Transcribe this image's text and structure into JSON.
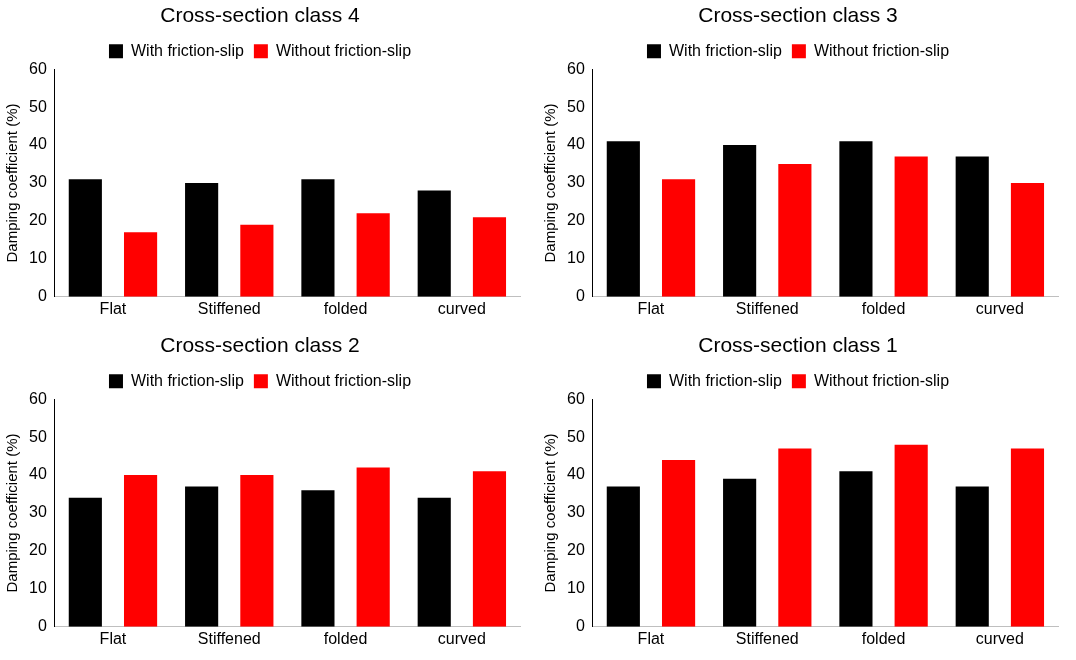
{
  "chart_data": [
    {
      "type": "bar",
      "title": "Cross-section class 4",
      "ylabel": "Damping coefficient (%)",
      "categories": [
        "Flat",
        "Stiffened",
        "folded",
        "curved"
      ],
      "ylim": [
        0,
        60
      ],
      "yticks": [
        0,
        10,
        20,
        30,
        40,
        50,
        60
      ],
      "grid": false,
      "legend": "top",
      "series": [
        {
          "name": "With friction-slip",
          "color": "#000000",
          "values": [
            31,
            30,
            31,
            28
          ]
        },
        {
          "name": "Without friction-slip",
          "color": "#ff0000",
          "values": [
            17,
            19,
            22,
            21
          ]
        }
      ]
    },
    {
      "type": "bar",
      "title": "Cross-section class 3",
      "ylabel": "Damping coefficient (%)",
      "categories": [
        "Flat",
        "Stiffened",
        "folded",
        "curved"
      ],
      "ylim": [
        0,
        60
      ],
      "yticks": [
        0,
        10,
        20,
        30,
        40,
        50,
        60
      ],
      "grid": false,
      "legend": "top",
      "series": [
        {
          "name": "With friction-slip",
          "color": "#000000",
          "values": [
            41,
            40,
            41,
            37
          ]
        },
        {
          "name": "Without friction-slip",
          "color": "#ff0000",
          "values": [
            31,
            35,
            37,
            30
          ]
        }
      ]
    },
    {
      "type": "bar",
      "title": "Cross-section class 2",
      "ylabel": "Damping coefficient (%)",
      "categories": [
        "Flat",
        "Stiffened",
        "folded",
        "curved"
      ],
      "ylim": [
        0,
        60
      ],
      "yticks": [
        0,
        10,
        20,
        30,
        40,
        50,
        60
      ],
      "grid": false,
      "legend": "top",
      "series": [
        {
          "name": "With friction-slip",
          "color": "#000000",
          "values": [
            34,
            37,
            36,
            34
          ]
        },
        {
          "name": "Without friction-slip",
          "color": "#ff0000",
          "values": [
            40,
            40,
            42,
            41
          ]
        }
      ]
    },
    {
      "type": "bar",
      "title": "Cross-section class 1",
      "ylabel": "Damping coefficient (%)",
      "categories": [
        "Flat",
        "Stiffened",
        "folded",
        "curved"
      ],
      "ylim": [
        0,
        60
      ],
      "yticks": [
        0,
        10,
        20,
        30,
        40,
        50,
        60
      ],
      "grid": false,
      "legend": "top",
      "series": [
        {
          "name": "With friction-slip",
          "color": "#000000",
          "values": [
            37,
            39,
            41,
            37
          ]
        },
        {
          "name": "Without friction-slip",
          "color": "#ff0000",
          "values": [
            44,
            47,
            48,
            47
          ]
        }
      ]
    }
  ]
}
